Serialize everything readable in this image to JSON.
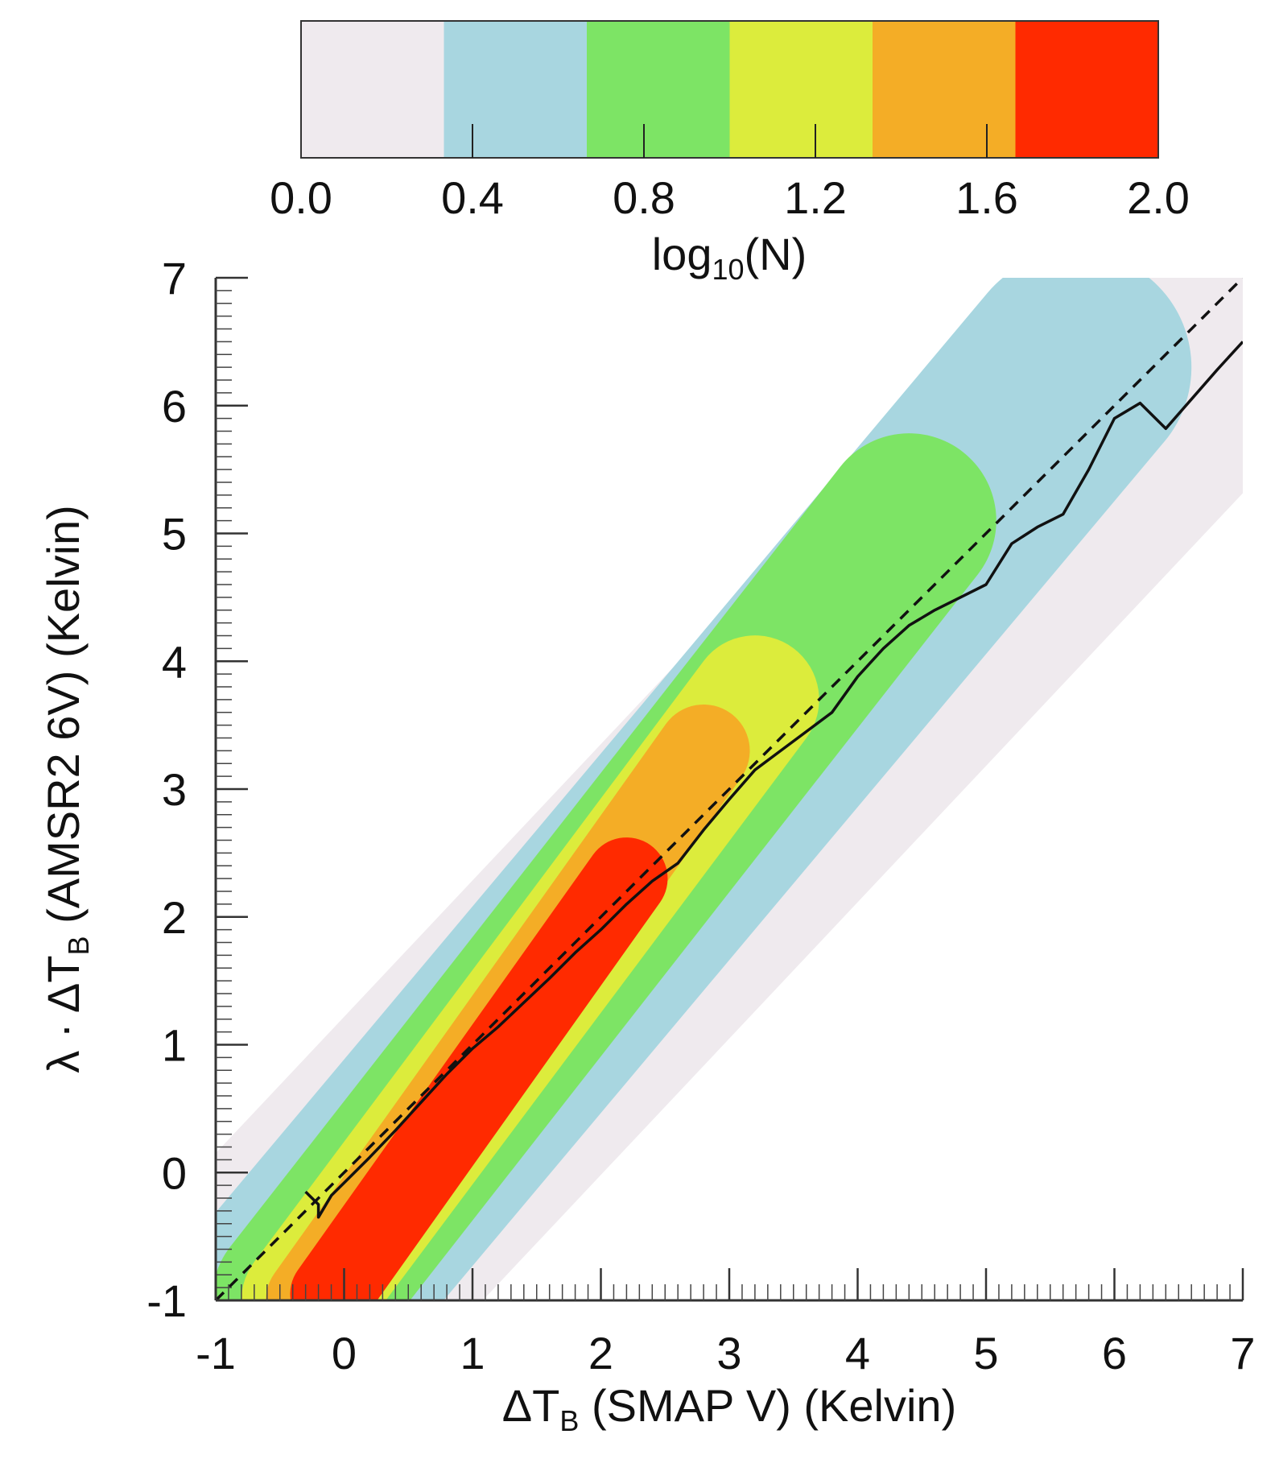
{
  "chart_data": {
    "type": "heatmap",
    "colorbar": {
      "title": "log",
      "title_sub": "10",
      "title_suffix": "(N)",
      "tick_labels": [
        "0.0",
        "0.4",
        "0.8",
        "1.2",
        "1.6",
        "2.0"
      ],
      "ticks": [
        0.0,
        0.4,
        0.8,
        1.2,
        1.6,
        2.0
      ],
      "range": [
        0.0,
        2.0
      ],
      "levels": 6,
      "colors": [
        "#efeaee",
        "#a8d6e0",
        "#7de465",
        "#dcec3c",
        "#f4ad26",
        "#ff2a00"
      ]
    },
    "xlabel": {
      "prefix": "ΔT",
      "sub": "B",
      "suffix": " (SMAP   V) (Kelvin)"
    },
    "ylabel": {
      "prefix": "λ · ΔT",
      "sub": "B",
      "suffix": " (AMSR2 6V) (Kelvin)"
    },
    "xlim": [
      -1,
      7
    ],
    "ylim": [
      -1,
      7
    ],
    "x_tick_labels": [
      "-1",
      "0",
      "1",
      "2",
      "3",
      "4",
      "5",
      "6",
      "7"
    ],
    "y_tick_labels": [
      "-1",
      "0",
      "1",
      "2",
      "3",
      "4",
      "5",
      "6",
      "7"
    ],
    "x_ticks": [
      -1,
      0,
      1,
      2,
      3,
      4,
      5,
      6,
      7
    ],
    "y_ticks": [
      -1,
      0,
      1,
      2,
      3,
      4,
      5,
      6,
      7
    ],
    "minor_tick_step": 0.1,
    "density_bands": [
      {
        "level": 1,
        "start": [
          -0.5,
          -1.0
        ],
        "end": [
          7.0,
          7.0
        ],
        "half_width": 1.15
      },
      {
        "level": 2,
        "start": [
          -0.4,
          -1.0
        ],
        "end": [
          5.7,
          6.3
        ],
        "half_width": 0.9
      },
      {
        "level": 3,
        "start": [
          -0.35,
          -1.0
        ],
        "end": [
          4.4,
          5.1
        ],
        "half_width": 0.68
      },
      {
        "level": 4,
        "start": [
          -0.3,
          -1.0
        ],
        "end": [
          3.2,
          3.7
        ],
        "half_width": 0.5
      },
      {
        "level": 5,
        "start": [
          -0.25,
          -1.0
        ],
        "end": [
          2.8,
          3.3
        ],
        "half_width": 0.36
      },
      {
        "level": 6,
        "start": [
          -0.1,
          -0.95
        ],
        "end": [
          2.2,
          2.3
        ],
        "half_width": 0.32
      }
    ],
    "series": [
      {
        "name": "one-to-one line",
        "style": "dashed",
        "x": [
          -1,
          7
        ],
        "y": [
          -1,
          7
        ]
      },
      {
        "name": "binned mean",
        "style": "solid",
        "x": [
          -0.3,
          -0.2,
          -0.2,
          -0.1,
          0.0,
          0.2,
          0.4,
          0.6,
          0.8,
          1.0,
          1.2,
          1.4,
          1.6,
          1.8,
          2.0,
          2.2,
          2.4,
          2.6,
          2.8,
          3.0,
          3.2,
          3.4,
          3.6,
          3.8,
          4.0,
          4.2,
          4.4,
          4.6,
          4.8,
          5.0,
          5.2,
          5.4,
          5.6,
          5.8,
          6.0,
          6.2,
          6.4,
          6.6,
          6.8,
          7.0
        ],
        "y": [
          -0.15,
          -0.25,
          -0.35,
          -0.18,
          -0.08,
          0.12,
          0.33,
          0.55,
          0.77,
          0.97,
          1.14,
          1.33,
          1.52,
          1.72,
          1.9,
          2.1,
          2.28,
          2.42,
          2.68,
          2.92,
          3.15,
          3.3,
          3.45,
          3.6,
          3.88,
          4.1,
          4.28,
          4.4,
          4.5,
          4.6,
          4.92,
          5.05,
          5.15,
          5.5,
          5.9,
          6.02,
          5.82,
          6.05,
          6.28,
          6.5
        ]
      }
    ]
  }
}
